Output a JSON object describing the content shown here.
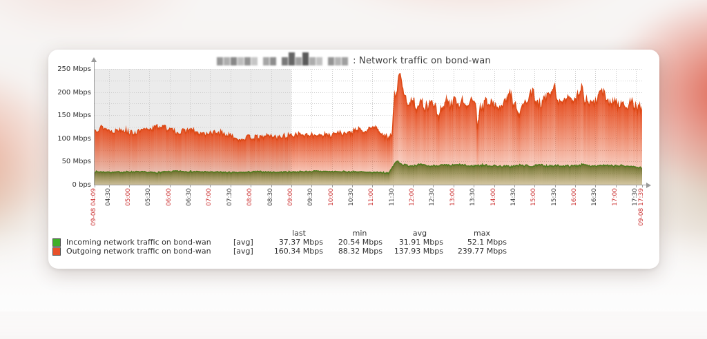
{
  "title": {
    "hostname_redacted": true,
    "text": ": Network traffic on bond-wan"
  },
  "colors": {
    "accent_red_label": "#cc3333",
    "dark_label": "#3a3a3a",
    "axis": "#9a9a9a",
    "grid": "#cccccc",
    "nonworking_bg": "#ebebeb",
    "incoming_swatch": "#3fae2a",
    "incoming_line": "#4a7a1a",
    "outgoing_swatch": "#e8502a",
    "outgoing_line": "#dc4814"
  },
  "chart_data": {
    "type": "area",
    "title": "Network traffic on bond-wan",
    "ylim": [
      0,
      250
    ],
    "y_unit": "Mbps",
    "grid": {
      "h_step_mbps": 25,
      "v_step_min": 30,
      "style": "dotted"
    },
    "time_axis": {
      "start_label": "09-08 04:09",
      "end_label": "09-08 17:39",
      "span_minutes": 810,
      "nonworking_shade_until": "09:00",
      "nonworking_end_minute": 291
    },
    "y_ticks": [
      {
        "v": 0,
        "label": "0 bps"
      },
      {
        "v": 50,
        "label": "50 Mbps"
      },
      {
        "v": 100,
        "label": "100 Mbps"
      },
      {
        "v": 150,
        "label": "150 Mbps"
      },
      {
        "v": 200,
        "label": "200 Mbps"
      },
      {
        "v": 250,
        "label": "250 Mbps"
      }
    ],
    "x_ticks": [
      {
        "t": 0,
        "label": "09-08 04:09",
        "red": true
      },
      {
        "t": 21,
        "label": "04:30",
        "red": false
      },
      {
        "t": 51,
        "label": "05:00",
        "red": true
      },
      {
        "t": 81,
        "label": "05:30",
        "red": false
      },
      {
        "t": 111,
        "label": "06:00",
        "red": true
      },
      {
        "t": 141,
        "label": "06:30",
        "red": false
      },
      {
        "t": 171,
        "label": "07:00",
        "red": true
      },
      {
        "t": 201,
        "label": "07:30",
        "red": false
      },
      {
        "t": 231,
        "label": "08:00",
        "red": true
      },
      {
        "t": 261,
        "label": "08:30",
        "red": false
      },
      {
        "t": 291,
        "label": "09:00",
        "red": true
      },
      {
        "t": 321,
        "label": "09:30",
        "red": false
      },
      {
        "t": 351,
        "label": "10:00",
        "red": true
      },
      {
        "t": 381,
        "label": "10:30",
        "red": false
      },
      {
        "t": 411,
        "label": "11:00",
        "red": true
      },
      {
        "t": 441,
        "label": "11:30",
        "red": false
      },
      {
        "t": 471,
        "label": "12:00",
        "red": true
      },
      {
        "t": 501,
        "label": "12:30",
        "red": false
      },
      {
        "t": 531,
        "label": "13:00",
        "red": true
      },
      {
        "t": 561,
        "label": "13:30",
        "red": false
      },
      {
        "t": 591,
        "label": "14:00",
        "red": true
      },
      {
        "t": 621,
        "label": "14:30",
        "red": false
      },
      {
        "t": 651,
        "label": "15:00",
        "red": true
      },
      {
        "t": 681,
        "label": "15:30",
        "red": false
      },
      {
        "t": 711,
        "label": "16:00",
        "red": true
      },
      {
        "t": 741,
        "label": "16:30",
        "red": false
      },
      {
        "t": 771,
        "label": "17:00",
        "red": true
      },
      {
        "t": 801,
        "label": "17:30",
        "red": false
      },
      {
        "t": 810,
        "label": "09-08 17:39",
        "red": true
      }
    ],
    "legend_headers": [
      "last",
      "min",
      "avg",
      "max"
    ],
    "series": [
      {
        "name": "Outgoing network traffic on bond-wan",
        "fn": "[avg]",
        "stats": {
          "last": "160.34 Mbps",
          "min": "88.32 Mbps",
          "avg": "137.93 Mbps",
          "max": "239.77 Mbps"
        },
        "seed": 13,
        "clamp": [
          86,
          242
        ],
        "noise": [
          {
            "from": 0,
            "to": 440,
            "amp": 7
          },
          {
            "from": 440,
            "to": 811,
            "amp": 13
          }
        ],
        "keyframes": [
          [
            0,
            118
          ],
          [
            10,
            124
          ],
          [
            25,
            115
          ],
          [
            40,
            120
          ],
          [
            55,
            110
          ],
          [
            70,
            116
          ],
          [
            85,
            122
          ],
          [
            100,
            126
          ],
          [
            110,
            118
          ],
          [
            125,
            112
          ],
          [
            140,
            118
          ],
          [
            155,
            108
          ],
          [
            170,
            110
          ],
          [
            185,
            112
          ],
          [
            200,
            104
          ],
          [
            215,
            98
          ],
          [
            230,
            102
          ],
          [
            245,
            100
          ],
          [
            255,
            106
          ],
          [
            270,
            102
          ],
          [
            285,
            104
          ],
          [
            300,
            110
          ],
          [
            315,
            104
          ],
          [
            330,
            108
          ],
          [
            345,
            106
          ],
          [
            360,
            112
          ],
          [
            375,
            110
          ],
          [
            390,
            118
          ],
          [
            400,
            112
          ],
          [
            410,
            126
          ],
          [
            420,
            118
          ],
          [
            428,
            104
          ],
          [
            435,
            100
          ],
          [
            440,
            108
          ],
          [
            443,
            190
          ],
          [
            447,
            205
          ],
          [
            451,
            238
          ],
          [
            455,
            210
          ],
          [
            459,
            186
          ],
          [
            464,
            176
          ],
          [
            470,
            182
          ],
          [
            477,
            168
          ],
          [
            484,
            176
          ],
          [
            490,
            165
          ],
          [
            497,
            180
          ],
          [
            503,
            172
          ],
          [
            508,
            138
          ],
          [
            514,
            170
          ],
          [
            520,
            178
          ],
          [
            526,
            168
          ],
          [
            532,
            180
          ],
          [
            538,
            172
          ],
          [
            544,
            182
          ],
          [
            550,
            170
          ],
          [
            556,
            178
          ],
          [
            562,
            180
          ],
          [
            566,
            128
          ],
          [
            570,
            172
          ],
          [
            574,
            168
          ],
          [
            580,
            182
          ],
          [
            586,
            175
          ],
          [
            592,
            170
          ],
          [
            598,
            160
          ],
          [
            604,
            172
          ],
          [
            610,
            182
          ],
          [
            614,
            200
          ],
          [
            618,
            178
          ],
          [
            622,
            170
          ],
          [
            626,
            145
          ],
          [
            630,
            162
          ],
          [
            636,
            175
          ],
          [
            642,
            185
          ],
          [
            648,
            198
          ],
          [
            652,
            178
          ],
          [
            658,
            170
          ],
          [
            664,
            180
          ],
          [
            670,
            188
          ],
          [
            676,
            195
          ],
          [
            680,
            212
          ],
          [
            684,
            185
          ],
          [
            690,
            172
          ],
          [
            696,
            182
          ],
          [
            700,
            198
          ],
          [
            704,
            180
          ],
          [
            710,
            188
          ],
          [
            716,
            195
          ],
          [
            720,
            208
          ],
          [
            724,
            185
          ],
          [
            730,
            178
          ],
          [
            736,
            172
          ],
          [
            742,
            182
          ],
          [
            748,
            195
          ],
          [
            752,
            205
          ],
          [
            756,
            180
          ],
          [
            762,
            172
          ],
          [
            768,
            182
          ],
          [
            774,
            170
          ],
          [
            780,
            175
          ],
          [
            786,
            168
          ],
          [
            792,
            175
          ],
          [
            798,
            170
          ],
          [
            804,
            165
          ],
          [
            810,
            160
          ]
        ]
      },
      {
        "name": "Incoming network traffic on bond-wan",
        "fn": "[avg]",
        "stats": {
          "last": "37.37 Mbps",
          "min": "20.54 Mbps",
          "avg": "31.91 Mbps",
          "max": "52.1 Mbps"
        },
        "seed": 7,
        "clamp": [
          19,
          52.5
        ],
        "noise": [
          {
            "from": 0,
            "to": 440,
            "amp": 1.8
          },
          {
            "from": 440,
            "to": 811,
            "amp": 2.6
          }
        ],
        "keyframes": [
          [
            0,
            28
          ],
          [
            30,
            27
          ],
          [
            60,
            28
          ],
          [
            90,
            26
          ],
          [
            120,
            29
          ],
          [
            150,
            28
          ],
          [
            180,
            27
          ],
          [
            210,
            26
          ],
          [
            240,
            28
          ],
          [
            270,
            27
          ],
          [
            300,
            28
          ],
          [
            330,
            29
          ],
          [
            360,
            28
          ],
          [
            390,
            28
          ],
          [
            405,
            26
          ],
          [
            420,
            27
          ],
          [
            435,
            25
          ],
          [
            441,
            40
          ],
          [
            444,
            46
          ],
          [
            448,
            52
          ],
          [
            452,
            46
          ],
          [
            456,
            43
          ],
          [
            465,
            41
          ],
          [
            480,
            43
          ],
          [
            495,
            40
          ],
          [
            510,
            42
          ],
          [
            525,
            41
          ],
          [
            540,
            43
          ],
          [
            555,
            40
          ],
          [
            570,
            42
          ],
          [
            585,
            41
          ],
          [
            600,
            40
          ],
          [
            615,
            39
          ],
          [
            630,
            42
          ],
          [
            645,
            40
          ],
          [
            660,
            42
          ],
          [
            675,
            40
          ],
          [
            690,
            41
          ],
          [
            705,
            40
          ],
          [
            720,
            43
          ],
          [
            735,
            41
          ],
          [
            750,
            42
          ],
          [
            765,
            40
          ],
          [
            780,
            41
          ],
          [
            795,
            39
          ],
          [
            810,
            37
          ]
        ]
      }
    ]
  }
}
